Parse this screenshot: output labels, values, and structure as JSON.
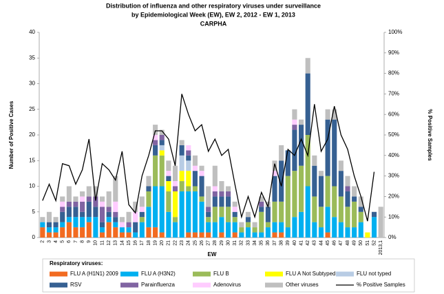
{
  "chart_data": {
    "type": "bar",
    "stacked": true,
    "title": [
      "Distribution of influenza and other respiratory viruses under surveillance",
      "by Epidemiological Week (EW), EW 2, 2012 - EW 1, 2013",
      "CARPHA"
    ],
    "xlabel": "EW",
    "ylabel": "Number of Positive Cases",
    "y2label": "% Positive Samples",
    "legend_title": "Respiratory viruses:",
    "categories": [
      "2",
      "3",
      "4",
      "5",
      "6",
      "7",
      "8",
      "9",
      "10",
      "11",
      "12",
      "13",
      "14",
      "15",
      "16",
      "17",
      "18",
      "19",
      "20",
      "21",
      "22",
      "23",
      "24",
      "25",
      "26",
      "27",
      "28",
      "29",
      "30",
      "31",
      "32",
      "33",
      "34",
      "35",
      "36",
      "37",
      "38",
      "39",
      "40",
      "41",
      "42",
      "43",
      "44",
      "45",
      "46",
      "47",
      "48",
      "49",
      "50",
      "51",
      "52",
      "2013,1"
    ],
    "ylim": [
      0,
      40
    ],
    "yticks": [
      0,
      5,
      10,
      15,
      20,
      25,
      30,
      35,
      40
    ],
    "y2lim": [
      0,
      100
    ],
    "y2ticks": [
      {
        "value": 0,
        "label": "0%"
      },
      {
        "value": 10,
        "label": "10%"
      },
      {
        "value": 20,
        "label": "20%"
      },
      {
        "value": 30,
        "label": "30%"
      },
      {
        "value": 40,
        "label": "40%"
      },
      {
        "value": 50,
        "label": "50%"
      },
      {
        "value": 60,
        "label": "60%"
      },
      {
        "value": 70,
        "label": "70%"
      },
      {
        "value": 80,
        "label": "80%"
      },
      {
        "value": 90,
        "label": "90%"
      },
      {
        "value": 100,
        "label": "100%"
      }
    ],
    "series": [
      {
        "name": "FLU A (H1N1) 2009",
        "color": "#f26b21",
        "values": [
          2,
          1,
          1,
          2,
          3,
          2,
          2,
          3,
          0,
          1,
          3,
          2,
          1,
          1,
          0,
          0,
          2,
          2,
          1,
          0,
          0,
          0,
          1,
          1,
          1,
          1,
          0,
          1,
          0,
          1,
          0,
          0,
          0,
          0,
          0,
          1,
          1,
          0,
          0,
          0,
          0,
          0,
          0,
          1,
          0,
          0,
          0,
          0,
          0,
          0,
          0,
          0
        ]
      },
      {
        "name": "FLU A (H3N2)",
        "color": "#00b0f0",
        "values": [
          1,
          1,
          1,
          1,
          1,
          2,
          2,
          1,
          4,
          1,
          1,
          1,
          1,
          1,
          1,
          3,
          4,
          8,
          9,
          5,
          3,
          9,
          8,
          8,
          6,
          2,
          3,
          3,
          3,
          2,
          1,
          2,
          1,
          1,
          2,
          2,
          2,
          2,
          4,
          5,
          10,
          3,
          2,
          5,
          4,
          3,
          2,
          2,
          3,
          0,
          4,
          0
        ]
      },
      {
        "name": "FLU B",
        "color": "#9bbb59",
        "values": [
          0,
          0,
          0,
          0,
          0,
          0,
          0,
          0,
          0,
          0,
          0,
          0,
          0,
          0,
          0,
          1,
          3,
          6,
          6,
          4,
          1,
          2,
          1,
          1,
          1,
          1,
          3,
          2,
          3,
          1,
          1,
          1,
          1,
          4,
          1,
          4,
          4,
          10,
          9,
          9,
          10,
          5,
          4,
          6,
          6,
          5,
          4,
          5,
          2,
          0,
          0,
          0
        ]
      },
      {
        "name": "FLU A Not Subtyped",
        "color": "#ffff00",
        "values": [
          0,
          0,
          0,
          0,
          0,
          0,
          0,
          0,
          0,
          0,
          0,
          0,
          0,
          0,
          0,
          0,
          0,
          0,
          1,
          2,
          5,
          2,
          3,
          0,
          0,
          0,
          0,
          0,
          0,
          0,
          0,
          0,
          0,
          0,
          0,
          0,
          0,
          0,
          0,
          0,
          0,
          0,
          0,
          0,
          0,
          0,
          0,
          0,
          0,
          1,
          0,
          0
        ]
      },
      {
        "name": "FLU not typed",
        "color": "#b8cce4",
        "values": [
          0,
          0,
          0,
          0,
          0,
          0,
          0,
          0,
          0,
          0,
          0,
          0,
          0,
          0,
          0,
          0,
          0,
          0,
          1,
          0,
          0,
          3,
          2,
          0,
          0,
          0,
          0,
          0,
          0,
          0,
          0,
          0,
          0,
          0,
          0,
          0,
          0,
          0,
          0,
          0,
          0,
          0,
          0,
          0,
          0,
          0,
          0,
          0,
          0,
          0,
          0,
          0
        ]
      },
      {
        "name": "RSV",
        "color": "#366092",
        "values": [
          0,
          1,
          1,
          2,
          2,
          2,
          1,
          3,
          2,
          1,
          1,
          1,
          0,
          0,
          2,
          1,
          1,
          2,
          1,
          1,
          0,
          2,
          1,
          3,
          4,
          1,
          2,
          2,
          2,
          1,
          0,
          1,
          0,
          1,
          3,
          5,
          8,
          5,
          8,
          8,
          12,
          6,
          6,
          11,
          13,
          5,
          3,
          1,
          1,
          0,
          1,
          0
        ]
      },
      {
        "name": "Parainfluenza",
        "color": "#8064a2",
        "values": [
          0,
          0,
          0,
          1,
          1,
          1,
          2,
          1,
          2,
          3,
          1,
          1,
          0,
          1,
          0,
          0,
          0,
          1,
          1,
          0,
          1,
          0,
          1,
          0,
          0,
          1,
          1,
          1,
          1,
          0,
          0,
          0,
          0,
          1,
          0,
          0,
          0,
          0,
          1,
          0,
          0,
          0,
          0,
          0,
          0,
          0,
          1,
          0,
          0,
          0,
          0,
          0
        ]
      },
      {
        "name": "Adenovirus",
        "color": "#ffccff",
        "values": [
          0,
          0,
          0,
          1,
          0,
          0,
          1,
          0,
          0,
          1,
          0,
          2,
          1,
          0,
          2,
          1,
          0,
          1,
          0,
          1,
          1,
          0,
          1,
          1,
          1,
          0,
          1,
          0,
          0,
          1,
          0,
          0,
          0,
          0,
          0,
          1,
          0,
          0,
          1,
          0,
          0,
          0,
          0,
          0,
          0,
          0,
          0,
          0,
          0,
          0,
          0,
          0
        ]
      },
      {
        "name": "Other viruses",
        "color": "#bfbfbf",
        "values": [
          1,
          2,
          1,
          1,
          3,
          1,
          1,
          2,
          2,
          1,
          3,
          5,
          1,
          2,
          2,
          2,
          2,
          2,
          1,
          2,
          3,
          1,
          0,
          2,
          1,
          4,
          4,
          2,
          1,
          1,
          1,
          1,
          1,
          1,
          1,
          2,
          3,
          0,
          2,
          1,
          3,
          2,
          1,
          2,
          2,
          2,
          2,
          2,
          2,
          0,
          0,
          6
        ]
      },
      {
        "name": "% Positive Samples",
        "color": "#000000",
        "axis": "y2",
        "values": [
          18,
          26,
          18,
          36,
          35,
          26,
          33,
          48,
          18,
          36,
          33,
          28,
          42,
          16,
          12,
          30,
          40,
          52,
          52,
          48,
          35,
          70,
          60,
          52,
          55,
          42,
          48,
          40,
          43,
          26,
          10,
          20,
          10,
          22,
          15,
          36,
          25,
          43,
          40,
          48,
          40,
          65,
          42,
          48,
          64,
          50,
          43,
          30,
          20,
          8,
          32,
          null
        ]
      }
    ]
  }
}
